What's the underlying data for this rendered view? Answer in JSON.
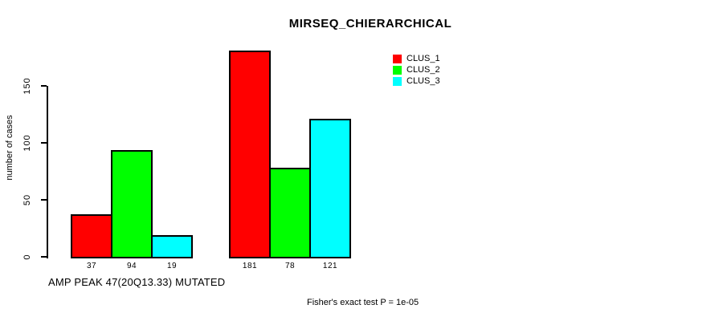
{
  "chart_data": {
    "type": "bar",
    "title": "MIRSEQ_CHIERARCHICAL",
    "ylabel": "number of cases",
    "xlabel": "AMP PEAK 47(20Q13.33) MUTATED",
    "annotation": "Fisher's exact test P = 1e-05",
    "ylim": [
      0,
      150
    ],
    "yticks": [
      0,
      50,
      100,
      150
    ],
    "grid": false,
    "legend_position": "top-right",
    "group_count": 2,
    "series": [
      {
        "name": "CLUS_1",
        "color": "#ff0000",
        "values": [
          37,
          181
        ]
      },
      {
        "name": "CLUS_2",
        "color": "#00ff00",
        "values": [
          94,
          78
        ]
      },
      {
        "name": "CLUS_3",
        "color": "#00ffff",
        "values": [
          19,
          121
        ]
      }
    ],
    "bar_values_shown_below_bars": true,
    "background_color": "#ffffff",
    "axis_color": "#000000"
  }
}
